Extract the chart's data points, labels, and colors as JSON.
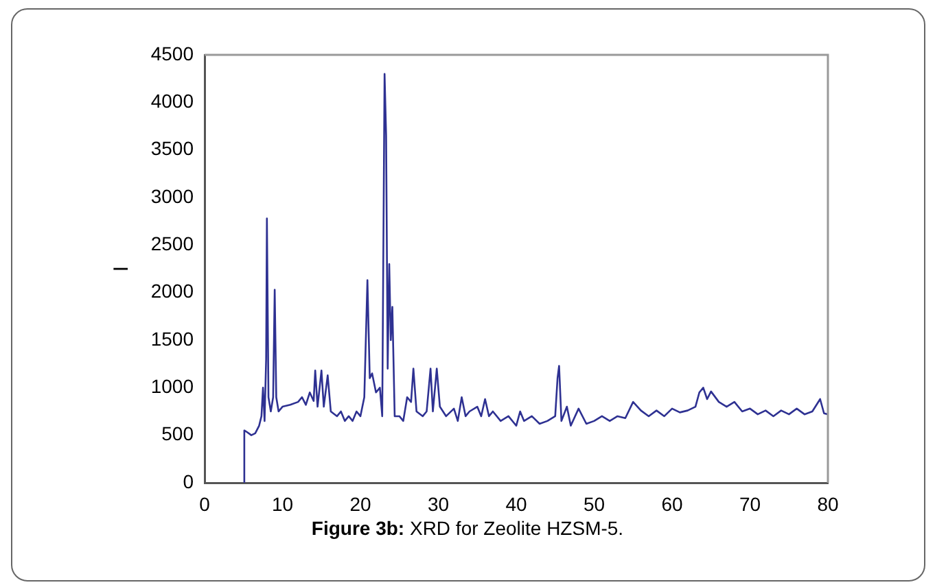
{
  "chart_data": {
    "type": "line",
    "title": "Figure 3b: XRD for Zeolite HZSM-5.",
    "ylabel": "I",
    "xlim": [
      0,
      80
    ],
    "xticks": [
      0,
      10,
      20,
      30,
      40,
      50,
      60,
      70,
      80
    ],
    "ylim": [
      0,
      4500
    ],
    "yticks": [
      0,
      500,
      1000,
      1500,
      2000,
      2500,
      3000,
      3500,
      4000,
      4500
    ],
    "grid": false,
    "legend": false,
    "marker": "none",
    "line_style": "solid",
    "series": [
      {
        "color": "#2e3192",
        "x": [
          5.0,
          5.1,
          5.5,
          6,
          6.5,
          7,
          7.3,
          7.5,
          7.7,
          7.9,
          8.0,
          8.2,
          8.5,
          8.8,
          9.0,
          9.2,
          9.5,
          10,
          11,
          12,
          12.5,
          13,
          13.5,
          14,
          14.2,
          14.5,
          15,
          15.3,
          15.8,
          16.2,
          17,
          17.5,
          18,
          18.5,
          19,
          19.5,
          20,
          20.5,
          20.9,
          21.2,
          21.5,
          22,
          22.5,
          22.8,
          23.1,
          23.3,
          23.5,
          23.7,
          23.9,
          24.1,
          24.4,
          25,
          25.5,
          26,
          26.5,
          26.8,
          27.2,
          28,
          28.5,
          29,
          29.3,
          29.8,
          30.2,
          31,
          32,
          32.5,
          33,
          33.5,
          34,
          35,
          35.5,
          36,
          36.5,
          37,
          38,
          39,
          40,
          40.5,
          41,
          42,
          43,
          44,
          45,
          45.3,
          45.5,
          45.8,
          46.5,
          47,
          48,
          49,
          50,
          51,
          52,
          53,
          54,
          55,
          56,
          57,
          58,
          59,
          60,
          61,
          62,
          63,
          63.5,
          64,
          64.5,
          65,
          66,
          67,
          68,
          69,
          70,
          71,
          72,
          73,
          74,
          75,
          76,
          77,
          78,
          79,
          79.5,
          80
        ],
        "values": [
          0,
          550,
          530,
          500,
          520,
          600,
          700,
          1000,
          650,
          1300,
          2780,
          900,
          750,
          900,
          2030,
          900,
          750,
          800,
          820,
          850,
          900,
          820,
          950,
          860,
          1180,
          800,
          1180,
          800,
          1130,
          750,
          700,
          750,
          650,
          700,
          650,
          750,
          700,
          900,
          2130,
          1100,
          1150,
          950,
          1000,
          700,
          4300,
          3650,
          1200,
          2300,
          1500,
          1850,
          700,
          700,
          650,
          900,
          850,
          1200,
          750,
          700,
          750,
          1200,
          750,
          1200,
          800,
          700,
          780,
          650,
          900,
          700,
          750,
          800,
          700,
          880,
          700,
          750,
          650,
          700,
          600,
          750,
          650,
          700,
          620,
          650,
          700,
          1100,
          1230,
          650,
          800,
          600,
          780,
          620,
          650,
          700,
          650,
          700,
          680,
          850,
          760,
          700,
          760,
          700,
          780,
          740,
          760,
          800,
          950,
          1000,
          880,
          960,
          850,
          800,
          850,
          750,
          780,
          720,
          760,
          700,
          760,
          720,
          780,
          720,
          750,
          880,
          730,
          720
        ]
      }
    ]
  }
}
